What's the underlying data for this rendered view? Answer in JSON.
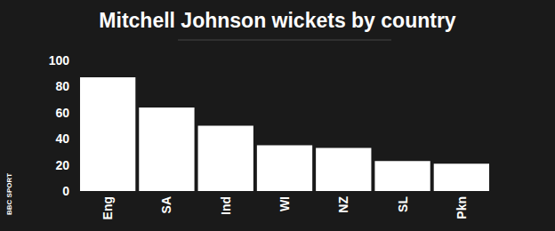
{
  "chart_data": {
    "type": "bar",
    "title": "Mitchell Johnson wickets by country",
    "categories": [
      "Eng",
      "SA",
      "Ind",
      "WI",
      "NZ",
      "SL",
      "Pkn"
    ],
    "values": [
      87,
      64,
      50,
      35,
      33,
      23,
      21
    ],
    "color": "#ffffff",
    "ylim": [
      0,
      100
    ],
    "yticks": [
      0,
      20,
      40,
      60,
      80,
      100
    ],
    "grid": false,
    "annotations": [
      "BBC SPORT"
    ]
  }
}
